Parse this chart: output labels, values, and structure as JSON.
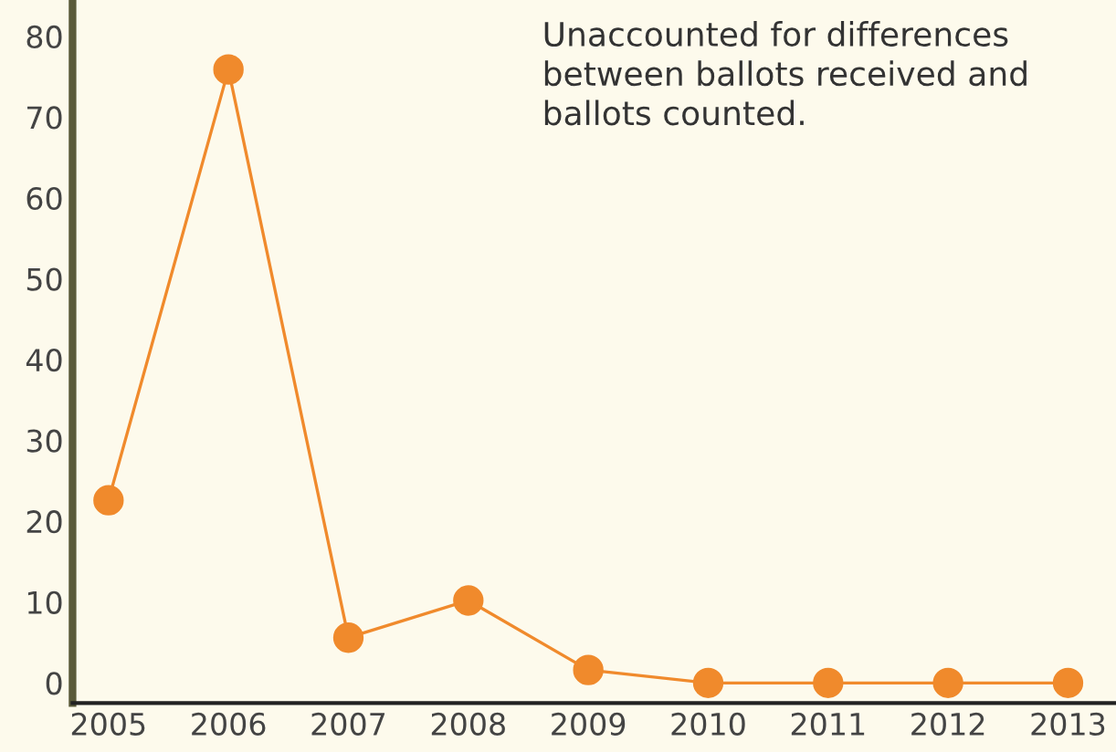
{
  "chart_data": {
    "type": "line",
    "categories": [
      "2005",
      "2006",
      "2007",
      "2008",
      "2009",
      "2010",
      "2011",
      "2012",
      "2013"
    ],
    "series": [
      {
        "color": "#f08a2c",
        "values": [
          22.6,
          75.9,
          5.6,
          10.2,
          1.6,
          0,
          0,
          0,
          0
        ]
      }
    ],
    "ylim": [
      -2.5,
      84.5
    ],
    "yticks": [
      0,
      10,
      20,
      30,
      40,
      50,
      60,
      70,
      80
    ],
    "marker": "circle",
    "line_style": "solid",
    "grid": false,
    "legend": false,
    "annotations": [
      "Unaccounted for differences\nbetween ballots received and\nballots counted."
    ]
  }
}
